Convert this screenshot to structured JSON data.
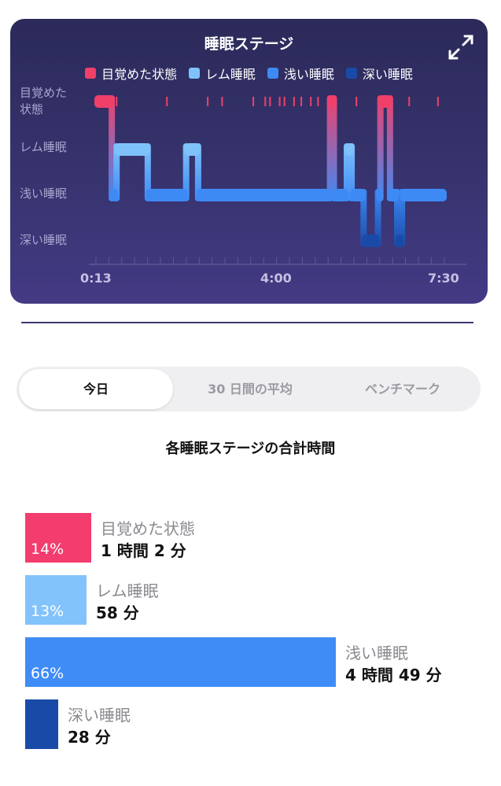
{
  "hypnogram": {
    "title": "睡眠ステージ",
    "legend": [
      {
        "label": "目覚めた状態",
        "color": "#f0406a"
      },
      {
        "label": "レム睡眠",
        "color": "#7fc2fb"
      },
      {
        "label": "浅い睡眠",
        "color": "#3e8af5"
      },
      {
        "label": "深い睡眠",
        "color": "#1a4aa8"
      }
    ],
    "stage_labels": [
      "目覚めた\n状態",
      "レム睡眠",
      "浅い睡眠",
      "深い睡眠"
    ],
    "time_labels": [
      "0:13",
      "4:00",
      "7:30"
    ],
    "expand_icon": "expand-arrows-icon"
  },
  "chart_data": {
    "type": "hypnogram",
    "x_unit": "hours since midnight",
    "xlim": [
      0.22,
      7.5
    ],
    "stages": [
      "awake",
      "rem",
      "light",
      "deep"
    ],
    "segments": [
      {
        "start": 0.22,
        "end": 0.55,
        "stage": "awake"
      },
      {
        "start": 0.55,
        "end": 0.65,
        "stage": "light"
      },
      {
        "start": 0.65,
        "end": 1.3,
        "stage": "rem"
      },
      {
        "start": 1.3,
        "end": 2.1,
        "stage": "light"
      },
      {
        "start": 2.1,
        "end": 2.35,
        "stage": "rem"
      },
      {
        "start": 2.35,
        "end": 5.1,
        "stage": "light"
      },
      {
        "start": 5.1,
        "end": 5.18,
        "stage": "awake"
      },
      {
        "start": 5.18,
        "end": 5.45,
        "stage": "light"
      },
      {
        "start": 5.45,
        "end": 5.55,
        "stage": "rem"
      },
      {
        "start": 5.55,
        "end": 5.8,
        "stage": "light"
      },
      {
        "start": 5.8,
        "end": 6.1,
        "stage": "deep"
      },
      {
        "start": 6.1,
        "end": 6.15,
        "stage": "light"
      },
      {
        "start": 6.15,
        "end": 6.35,
        "stage": "awake"
      },
      {
        "start": 6.35,
        "end": 6.5,
        "stage": "light"
      },
      {
        "start": 6.5,
        "end": 6.6,
        "stage": "deep"
      },
      {
        "start": 6.6,
        "end": 7.5,
        "stage": "light"
      }
    ],
    "brief_wakes": [
      0.65,
      1.7,
      2.55,
      2.85,
      3.5,
      3.75,
      3.85,
      4.05,
      4.15,
      4.35,
      4.5,
      4.7,
      4.85,
      5.65,
      6.75,
      7.35
    ]
  },
  "tabs": [
    {
      "label": "今日",
      "active": true
    },
    {
      "label": "30 日間の平均",
      "active": false
    },
    {
      "label": "ベンチマーク",
      "active": false
    }
  ],
  "summary": {
    "title": "各睡眠ステージの合計時間",
    "stages": [
      {
        "name": "目覚めた状態",
        "duration": "1 時間 2 分",
        "percent_label": "14%",
        "percent": 14,
        "color": "#f23d6e"
      },
      {
        "name": "レム睡眠",
        "duration": "58 分",
        "percent_label": "13%",
        "percent": 13,
        "color": "#82c3fc"
      },
      {
        "name": "浅い睡眠",
        "duration": "4 時間 49 分",
        "percent_label": "66%",
        "percent": 66,
        "color": "#3f8cf7"
      },
      {
        "name": "深い睡眠",
        "duration": "28 分",
        "percent_label": "",
        "percent": 7,
        "color": "#1a4aa8"
      }
    ]
  }
}
